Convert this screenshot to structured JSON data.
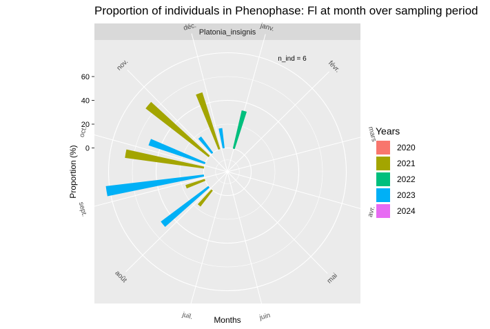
{
  "title": "Proportion of individuals in Phenophase: Fl at month over sampling period",
  "chart_data": {
    "type": "bar",
    "coord": "polar",
    "facet_label": "Platonia_insignis",
    "annotation": "n_ind =  6",
    "xlabel": "Months",
    "ylabel": "Proportion (%)",
    "y_ticks": [
      "60",
      "40",
      "20",
      "0"
    ],
    "y_tick_values": [
      60,
      40,
      20,
      0
    ],
    "r_min": -20,
    "r_max": 100,
    "months": [
      "janv.",
      "févr.",
      "mars",
      "avr.",
      "mai",
      "juin",
      "juil.",
      "août",
      "sept.",
      "oct.",
      "nov.",
      "déc."
    ],
    "legend": {
      "title": "Years",
      "position": "right",
      "entries": [
        {
          "label": "2020",
          "color": "#F8766D"
        },
        {
          "label": "2021",
          "color": "#A3A500"
        },
        {
          "label": "2022",
          "color": "#00BF7D"
        },
        {
          "label": "2023",
          "color": "#00B0F6"
        },
        {
          "label": "2024",
          "color": "#E76BF3"
        }
      ]
    },
    "bars": [
      {
        "month": "janv.",
        "year": "2022",
        "value": 33
      },
      {
        "month": "août",
        "year": "2021",
        "value": 17
      },
      {
        "month": "août",
        "year": "2023",
        "value": 50
      },
      {
        "month": "sept.",
        "year": "2021",
        "value": 17
      },
      {
        "month": "sept.",
        "year": "2023",
        "value": 83
      },
      {
        "month": "oct.",
        "year": "2021",
        "value": 67
      },
      {
        "month": "oct.",
        "year": "2023",
        "value": 50
      },
      {
        "month": "nov.",
        "year": "2021",
        "value": 67
      },
      {
        "month": "nov.",
        "year": "2023",
        "value": 17
      },
      {
        "month": "déc.",
        "year": "2021",
        "value": 50
      },
      {
        "month": "déc.",
        "year": "2023",
        "value": 17
      }
    ],
    "grid": true,
    "background": "#EBEBEB",
    "strip_background": "#D9D9D9"
  }
}
